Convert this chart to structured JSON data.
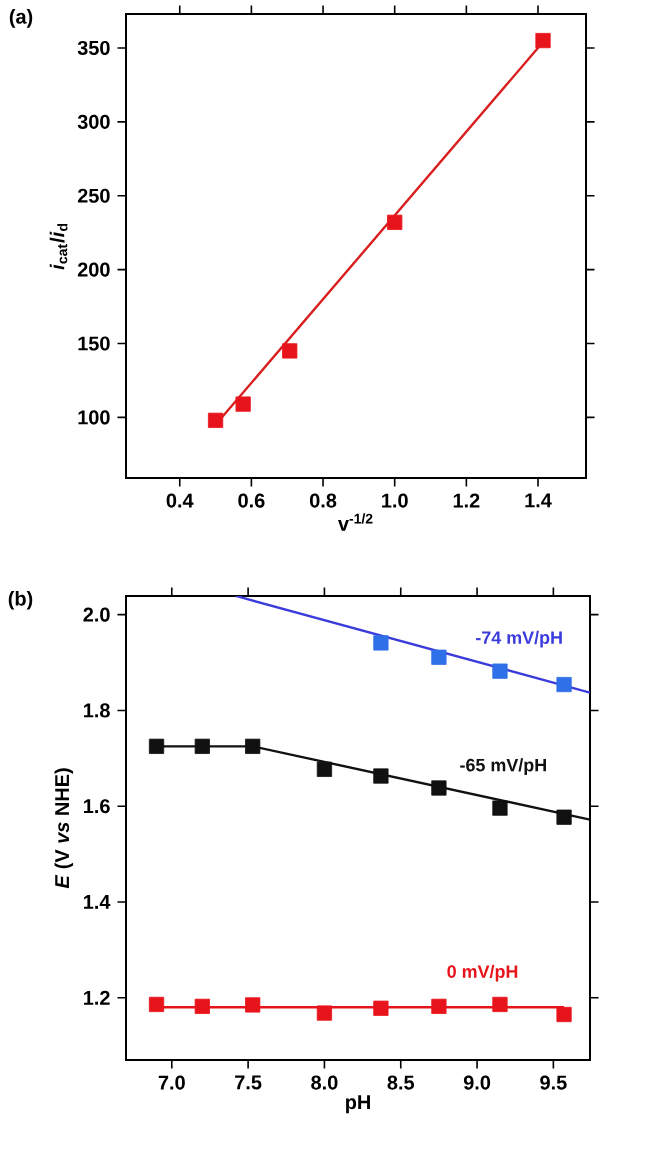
{
  "chart_data": [
    {
      "type": "scatter",
      "title": "(a)",
      "xlabel": "v$^{-1/2}$",
      "ylabel": "*i*$_{cat}$/*i*$_{d}$",
      "marker": "square",
      "xlim": [
        0.25,
        1.534
      ],
      "ylim": [
        59,
        373
      ],
      "xticks": [
        0.4,
        0.6,
        0.8,
        {
          "value": 1.0,
          "label": "1.0"
        },
        1.2,
        1.4
      ],
      "yticks": [
        100,
        150,
        200,
        250,
        300,
        350
      ],
      "x": [
        0.5,
        0.577,
        0.707,
        1.0,
        1.414
      ],
      "series": [
        {
          "type": "line",
          "marker": "none",
          "color": "#d81e1e",
          "x": [
            0.5,
            1.414
          ],
          "values": [
            95,
            354
          ]
        },
        {
          "color": "#e8141c",
          "values": [
            98,
            109,
            145,
            232,
            355
          ]
        }
      ]
    },
    {
      "type": "scatter",
      "title": "(b)",
      "xlabel": "pH",
      "ylabel": "*E* (V *vs* NHE)",
      "marker": "square",
      "xlim": [
        6.7,
        9.74
      ],
      "ylim": [
        1.07,
        2.039
      ],
      "xticks": [
        {
          "value": 7,
          "label": "7.0"
        },
        7.5,
        {
          "value": 8,
          "label": "8.0"
        },
        8.5,
        {
          "value": 9,
          "label": "9.0"
        },
        9.5
      ],
      "yticks": [
        1.2,
        1.4,
        1.6,
        1.8,
        {
          "value": 2,
          "label": "2.0"
        }
      ],
      "x": [
        6.9,
        7.2,
        7.53,
        8.0,
        8.37,
        8.75,
        9.15,
        9.57
      ],
      "series": [
        {
          "type": "line",
          "marker": "none",
          "color": "#3b3bdc",
          "x": [
            7.42,
            9.74
          ],
          "values": [
            2.039,
            1.837
          ]
        },
        {
          "type": "line",
          "marker": "none",
          "color": "#111111",
          "x": [
            6.9,
            7.53,
            9.74
          ],
          "values": [
            1.725,
            1.725,
            1.572
          ]
        },
        {
          "type": "line",
          "marker": "none",
          "color": "#e8141c",
          "x": [
            6.9,
            9.57
          ],
          "values": [
            1.18,
            1.18
          ]
        },
        {
          "color": "#2f6fe8",
          "x": [
            8.37,
            8.75,
            9.15,
            9.57
          ],
          "values": [
            1.941,
            1.911,
            1.882,
            1.854
          ]
        },
        {
          "color": "#111111",
          "values": [
            1.725,
            1.725,
            1.725,
            1.677,
            1.663,
            1.638,
            1.596,
            1.577
          ]
        },
        {
          "color": "#e8141c",
          "values": [
            1.186,
            1.182,
            1.185,
            1.168,
            1.178,
            1.182,
            1.186,
            1.165
          ]
        }
      ],
      "annotations": [
        "-74 mV/pH",
        "-65 mV/pH",
        "0 mV/pH"
      ]
    }
  ]
}
